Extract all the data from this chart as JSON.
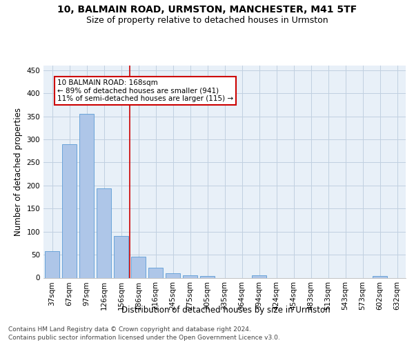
{
  "title_line1": "10, BALMAIN ROAD, URMSTON, MANCHESTER, M41 5TF",
  "title_line2": "Size of property relative to detached houses in Urmston",
  "xlabel": "Distribution of detached houses by size in Urmston",
  "ylabel": "Number of detached properties",
  "bar_labels": [
    "37sqm",
    "67sqm",
    "97sqm",
    "126sqm",
    "156sqm",
    "186sqm",
    "216sqm",
    "245sqm",
    "275sqm",
    "305sqm",
    "335sqm",
    "364sqm",
    "394sqm",
    "424sqm",
    "454sqm",
    "483sqm",
    "513sqm",
    "543sqm",
    "573sqm",
    "602sqm",
    "632sqm"
  ],
  "bar_values": [
    58,
    290,
    355,
    193,
    91,
    45,
    21,
    9,
    5,
    3,
    0,
    0,
    5,
    0,
    0,
    0,
    0,
    0,
    0,
    4,
    0
  ],
  "bar_color": "#aec6e8",
  "bar_edge_color": "#5b9bd5",
  "annotation_text_line1": "10 BALMAIN ROAD: 168sqm",
  "annotation_text_line2": "← 89% of detached houses are smaller (941)",
  "annotation_text_line3": "11% of semi-detached houses are larger (115) →",
  "annotation_box_color": "#ffffff",
  "annotation_box_edge_color": "#cc0000",
  "vline_color": "#cc0000",
  "ylim": [
    0,
    460
  ],
  "yticks": [
    0,
    50,
    100,
    150,
    200,
    250,
    300,
    350,
    400,
    450
  ],
  "grid_color": "#c0d0e0",
  "background_color": "#e8f0f8",
  "footer_line1": "Contains HM Land Registry data © Crown copyright and database right 2024.",
  "footer_line2": "Contains public sector information licensed under the Open Government Licence v3.0.",
  "title_fontsize": 10,
  "subtitle_fontsize": 9,
  "axis_label_fontsize": 8.5,
  "tick_fontsize": 7.5,
  "annotation_fontsize": 7.5,
  "footer_fontsize": 6.5
}
